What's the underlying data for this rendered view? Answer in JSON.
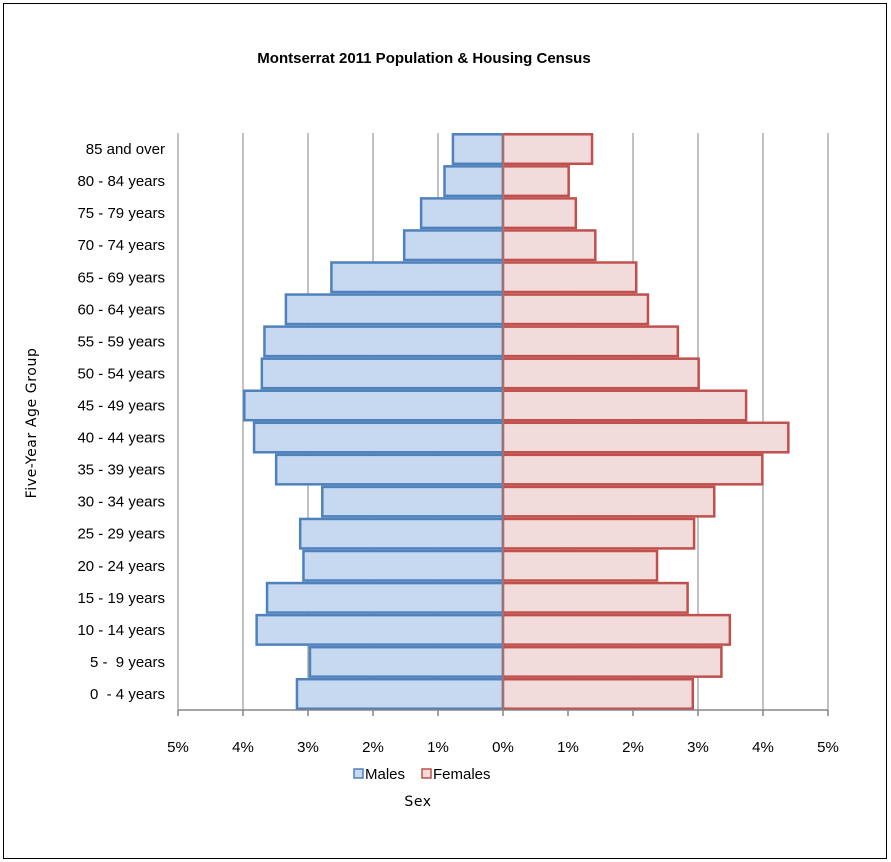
{
  "chart_data": {
    "type": "bar",
    "orientation": "horizontal-population-pyramid",
    "title": "Montserrat 2011 Population  & Housing Census",
    "xlabel": "Sex",
    "ylabel": "Five-Year Age Group",
    "xlim": [
      -5,
      5
    ],
    "x_tick_values": [
      -5,
      -4,
      -3,
      -2,
      -1,
      0,
      1,
      2,
      3,
      4,
      5
    ],
    "x_tick_labels": [
      "5%",
      "4%",
      "3%",
      "2%",
      "1%",
      "0%",
      "1%",
      "2%",
      "3%",
      "4%",
      "5%"
    ],
    "grid": true,
    "legend_position": "bottom",
    "categories": [
      "0  - 4 years",
      "5 -  9 years",
      "10 - 14 years",
      "15 - 19 years",
      "20 - 24 years",
      "25 - 29 years",
      "30 - 34 years",
      "35 - 39 years",
      "40 - 44 years",
      "45 - 49 years",
      "50 - 54 years",
      "55 - 59 years",
      "60 - 64 years",
      "65 - 69 years",
      "70 - 74 years",
      "75 - 79 years",
      "80 - 84 years",
      "85 and over"
    ],
    "series": [
      {
        "name": "Males",
        "fill": "#c6d9f1",
        "stroke": "#4f81bd",
        "values": [
          -3.17,
          -2.97,
          -3.79,
          -3.63,
          -3.07,
          -3.12,
          -2.78,
          -3.49,
          -3.83,
          -3.98,
          -3.71,
          -3.67,
          -3.34,
          -2.64,
          -1.52,
          -1.26,
          -0.9,
          -0.77
        ]
      },
      {
        "name": "Females",
        "fill": "#f2dcdb",
        "stroke": "#c0504d",
        "values": [
          2.92,
          3.36,
          3.49,
          2.84,
          2.37,
          2.94,
          3.25,
          3.99,
          4.39,
          3.74,
          3.01,
          2.69,
          2.23,
          2.05,
          1.42,
          1.12,
          1.01,
          1.37
        ]
      }
    ]
  }
}
